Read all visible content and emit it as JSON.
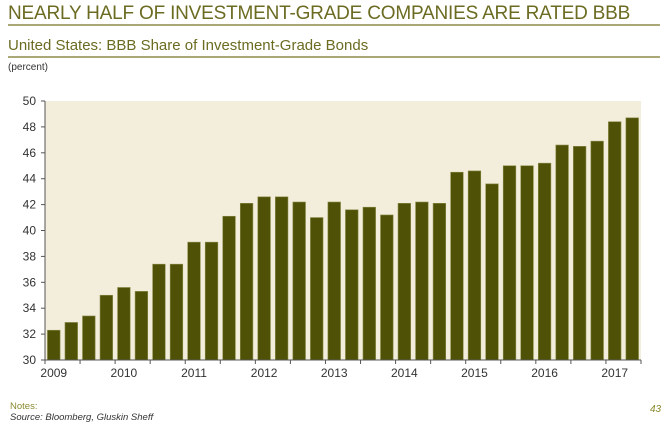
{
  "header": {
    "title": "NEARLY HALF OF INVESTMENT-GRADE COMPANIES ARE RATED BBB",
    "subtitle": "United States: BBB Share of Investment-Grade Bonds",
    "unit": "(percent)"
  },
  "footer": {
    "notes_label": "Notes:",
    "source": "Source: Bloomberg, Gluskin Sheff",
    "page_number": "43"
  },
  "colors": {
    "bar": "#4f5206",
    "bar_edge": "#8a8c4a",
    "plot_background": "#f3eedc",
    "title_text": "#6b6b22",
    "rule": "#a9a876"
  },
  "chart_data": {
    "type": "bar",
    "title": "United States: BBB Share of Investment-Grade Bonds",
    "xlabel": "",
    "ylabel": "(percent)",
    "ylim": [
      30,
      50
    ],
    "yticks": [
      30,
      32,
      34,
      36,
      38,
      40,
      42,
      44,
      46,
      48,
      50
    ],
    "frequency": "quarterly",
    "start": "2009 Q1",
    "end": "2017 Q2",
    "xtick_labels": [
      "2009",
      "2010",
      "2011",
      "2012",
      "2013",
      "2014",
      "2015",
      "2016",
      "2017"
    ],
    "grid": false,
    "legend": "none",
    "categories": [
      "2009 Q1",
      "2009 Q2",
      "2009 Q3",
      "2009 Q4",
      "2010 Q1",
      "2010 Q2",
      "2010 Q3",
      "2010 Q4",
      "2011 Q1",
      "2011 Q2",
      "2011 Q3",
      "2011 Q4",
      "2012 Q1",
      "2012 Q2",
      "2012 Q3",
      "2012 Q4",
      "2013 Q1",
      "2013 Q2",
      "2013 Q3",
      "2013 Q4",
      "2014 Q1",
      "2014 Q2",
      "2014 Q3",
      "2014 Q4",
      "2015 Q1",
      "2015 Q2",
      "2015 Q3",
      "2015 Q4",
      "2016 Q1",
      "2016 Q2",
      "2016 Q3",
      "2016 Q4",
      "2017 Q1",
      "2017 Q2"
    ],
    "values": [
      32.3,
      32.9,
      33.4,
      35.0,
      35.6,
      35.3,
      37.4,
      37.4,
      39.1,
      39.1,
      41.1,
      42.1,
      42.6,
      42.6,
      42.2,
      41.0,
      42.2,
      41.6,
      41.8,
      41.2,
      42.1,
      42.2,
      42.1,
      44.5,
      44.6,
      43.6,
      45.0,
      45.0,
      45.2,
      46.6,
      46.5,
      46.9,
      48.4,
      48.7
    ]
  }
}
